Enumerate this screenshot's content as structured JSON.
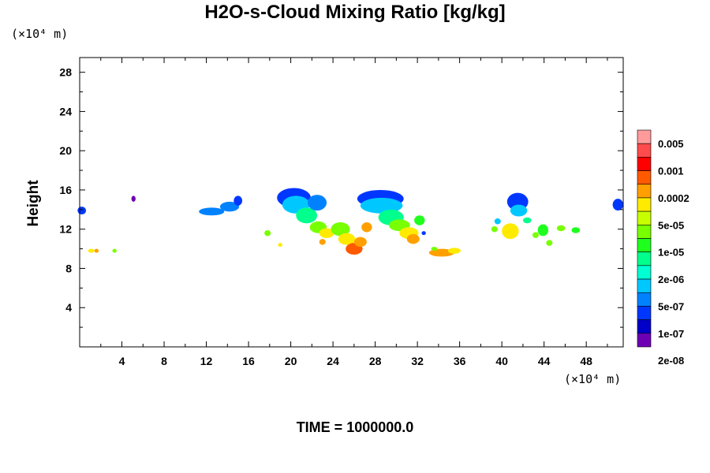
{
  "chart_data": {
    "type": "heatmap",
    "title": "H2O-s-Cloud Mixing Ratio [kg/kg]",
    "ylabel": "Height",
    "xlabel": "",
    "x_unit": "(×10⁴ m)",
    "y_unit": "(×10⁴ m)",
    "footer": "TIME = 1000000.0",
    "xlim": [
      0,
      51.5
    ],
    "ylim": [
      0,
      29.5
    ],
    "x_ticks": [
      "4",
      "8",
      "12",
      "16",
      "20",
      "24",
      "28",
      "32",
      "36",
      "40",
      "44",
      "48"
    ],
    "y_ticks": [
      "4",
      "8",
      "12",
      "16",
      "20",
      "24",
      "28"
    ],
    "colorbar": {
      "labels": [
        "0.005",
        "0.001",
        "0.0002",
        "5e-05",
        "1e-05",
        "2e-06",
        "5e-07",
        "1e-07",
        "2e-08"
      ],
      "colors": [
        "#ff9b9b",
        "#ff4b4b",
        "#ff0000",
        "#ff5a00",
        "#ffa000",
        "#ffeb00",
        "#c8ff00",
        "#78ff00",
        "#1eff1e",
        "#00ff8c",
        "#00ffd2",
        "#00c8ff",
        "#0082ff",
        "#0037ff",
        "#0000c8",
        "#6e00b4"
      ]
    },
    "clouds": [
      {
        "x": 0.2,
        "y": 13.9,
        "rx": 0.4,
        "ry": 0.4,
        "c": "#0037ff"
      },
      {
        "x": 1.1,
        "y": 9.8,
        "rx": 0.3,
        "ry": 0.2,
        "c": "#ffeb00"
      },
      {
        "x": 1.6,
        "y": 9.8,
        "rx": 0.2,
        "ry": 0.2,
        "c": "#ffa000"
      },
      {
        "x": 3.3,
        "y": 9.8,
        "rx": 0.2,
        "ry": 0.2,
        "c": "#78ff00"
      },
      {
        "x": 5.1,
        "y": 15.1,
        "rx": 0.2,
        "ry": 0.3,
        "c": "#6e00b4"
      },
      {
        "x": 12.5,
        "y": 13.8,
        "rx": 1.2,
        "ry": 0.4,
        "c": "#0082ff"
      },
      {
        "x": 14.2,
        "y": 14.3,
        "rx": 0.9,
        "ry": 0.5,
        "c": "#0082ff"
      },
      {
        "x": 15.0,
        "y": 14.9,
        "rx": 0.4,
        "ry": 0.5,
        "c": "#0037ff"
      },
      {
        "x": 17.8,
        "y": 11.6,
        "rx": 0.3,
        "ry": 0.3,
        "c": "#78ff00"
      },
      {
        "x": 19.0,
        "y": 10.4,
        "rx": 0.2,
        "ry": 0.2,
        "c": "#ffeb00"
      },
      {
        "x": 20.3,
        "y": 15.2,
        "rx": 1.6,
        "ry": 1.0,
        "c": "#0037ff"
      },
      {
        "x": 20.5,
        "y": 14.5,
        "rx": 1.3,
        "ry": 0.9,
        "c": "#00c8ff"
      },
      {
        "x": 21.5,
        "y": 13.4,
        "rx": 1.0,
        "ry": 0.8,
        "c": "#00ff8c"
      },
      {
        "x": 22.5,
        "y": 14.7,
        "rx": 0.9,
        "ry": 0.8,
        "c": "#0082ff"
      },
      {
        "x": 22.6,
        "y": 12.2,
        "rx": 0.8,
        "ry": 0.6,
        "c": "#78ff00"
      },
      {
        "x": 23.4,
        "y": 11.6,
        "rx": 0.7,
        "ry": 0.5,
        "c": "#ffeb00"
      },
      {
        "x": 23.0,
        "y": 10.7,
        "rx": 0.3,
        "ry": 0.3,
        "c": "#ffa000"
      },
      {
        "x": 24.7,
        "y": 12.0,
        "rx": 0.9,
        "ry": 0.7,
        "c": "#78ff00"
      },
      {
        "x": 25.3,
        "y": 11.0,
        "rx": 0.8,
        "ry": 0.6,
        "c": "#ffeb00"
      },
      {
        "x": 26.0,
        "y": 10.0,
        "rx": 0.8,
        "ry": 0.6,
        "c": "#ff5a00"
      },
      {
        "x": 26.6,
        "y": 10.7,
        "rx": 0.6,
        "ry": 0.5,
        "c": "#ffa000"
      },
      {
        "x": 27.2,
        "y": 12.2,
        "rx": 0.5,
        "ry": 0.5,
        "c": "#ffa000"
      },
      {
        "x": 28.5,
        "y": 15.1,
        "rx": 2.2,
        "ry": 0.9,
        "c": "#0037ff"
      },
      {
        "x": 28.6,
        "y": 14.4,
        "rx": 2.0,
        "ry": 0.8,
        "c": "#00c8ff"
      },
      {
        "x": 29.5,
        "y": 13.2,
        "rx": 1.2,
        "ry": 0.8,
        "c": "#00ff8c"
      },
      {
        "x": 30.3,
        "y": 12.4,
        "rx": 1.0,
        "ry": 0.6,
        "c": "#78ff00"
      },
      {
        "x": 31.2,
        "y": 11.6,
        "rx": 0.9,
        "ry": 0.6,
        "c": "#ffeb00"
      },
      {
        "x": 31.6,
        "y": 11.0,
        "rx": 0.6,
        "ry": 0.5,
        "c": "#ffa000"
      },
      {
        "x": 32.2,
        "y": 12.9,
        "rx": 0.5,
        "ry": 0.5,
        "c": "#1eff1e"
      },
      {
        "x": 32.6,
        "y": 11.6,
        "rx": 0.2,
        "ry": 0.2,
        "c": "#0037ff"
      },
      {
        "x": 34.3,
        "y": 9.6,
        "rx": 1.2,
        "ry": 0.4,
        "c": "#ffa000"
      },
      {
        "x": 35.5,
        "y": 9.8,
        "rx": 0.6,
        "ry": 0.3,
        "c": "#ffeb00"
      },
      {
        "x": 33.6,
        "y": 10.0,
        "rx": 0.3,
        "ry": 0.2,
        "c": "#78ff00"
      },
      {
        "x": 39.3,
        "y": 12.0,
        "rx": 0.3,
        "ry": 0.3,
        "c": "#78ff00"
      },
      {
        "x": 39.6,
        "y": 12.8,
        "rx": 0.3,
        "ry": 0.3,
        "c": "#00c8ff"
      },
      {
        "x": 40.8,
        "y": 11.8,
        "rx": 0.8,
        "ry": 0.8,
        "c": "#ffeb00"
      },
      {
        "x": 41.5,
        "y": 14.8,
        "rx": 1.0,
        "ry": 0.9,
        "c": "#0037ff"
      },
      {
        "x": 41.6,
        "y": 13.9,
        "rx": 0.8,
        "ry": 0.6,
        "c": "#00c8ff"
      },
      {
        "x": 42.4,
        "y": 12.9,
        "rx": 0.4,
        "ry": 0.3,
        "c": "#00ff8c"
      },
      {
        "x": 43.2,
        "y": 11.4,
        "rx": 0.3,
        "ry": 0.3,
        "c": "#78ff00"
      },
      {
        "x": 43.9,
        "y": 11.9,
        "rx": 0.5,
        "ry": 0.6,
        "c": "#1eff1e"
      },
      {
        "x": 44.5,
        "y": 10.6,
        "rx": 0.3,
        "ry": 0.3,
        "c": "#78ff00"
      },
      {
        "x": 45.6,
        "y": 12.1,
        "rx": 0.4,
        "ry": 0.3,
        "c": "#78ff00"
      },
      {
        "x": 47.0,
        "y": 11.9,
        "rx": 0.4,
        "ry": 0.3,
        "c": "#1eff1e"
      },
      {
        "x": 51.0,
        "y": 14.5,
        "rx": 0.5,
        "ry": 0.6,
        "c": "#0037ff"
      }
    ]
  }
}
